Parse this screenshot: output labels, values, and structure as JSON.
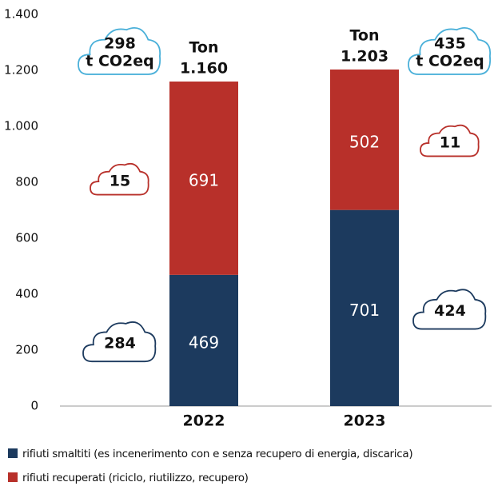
{
  "chart_data": {
    "type": "stacked_bar",
    "categories": [
      "2022",
      "2023"
    ],
    "series": [
      {
        "name": "rifiuti smaltiti (es incenerimento con e senza recupero di energia, discarica)",
        "color": "#1c3a5e",
        "values": [
          469,
          701
        ],
        "co2": [
          284,
          424
        ],
        "cloud_color": "#1c3a5e"
      },
      {
        "name": "rifiuti recuperati (riciclo, riutilizzo, recupero)",
        "color": "#b8302a",
        "values": [
          691,
          502
        ],
        "co2": [
          15,
          11
        ],
        "cloud_color": "#b8302a"
      }
    ],
    "total_prefix": "Ton",
    "totals": {
      "values": [
        1160,
        1203
      ],
      "value_labels": [
        "1.160",
        "1.203"
      ],
      "co2": [
        298,
        435
      ],
      "co2_unit": "t CO2eq",
      "cloud_color": "#4ab0d9"
    },
    "ylim": [
      0,
      1400
    ],
    "yticks": [
      0,
      200,
      400,
      600,
      800,
      {
        "value": 1000,
        "label": "1.000"
      },
      {
        "value": 1200,
        "label": "1.200"
      },
      {
        "value": 1400,
        "label": "1.400"
      }
    ],
    "grid": false
  }
}
